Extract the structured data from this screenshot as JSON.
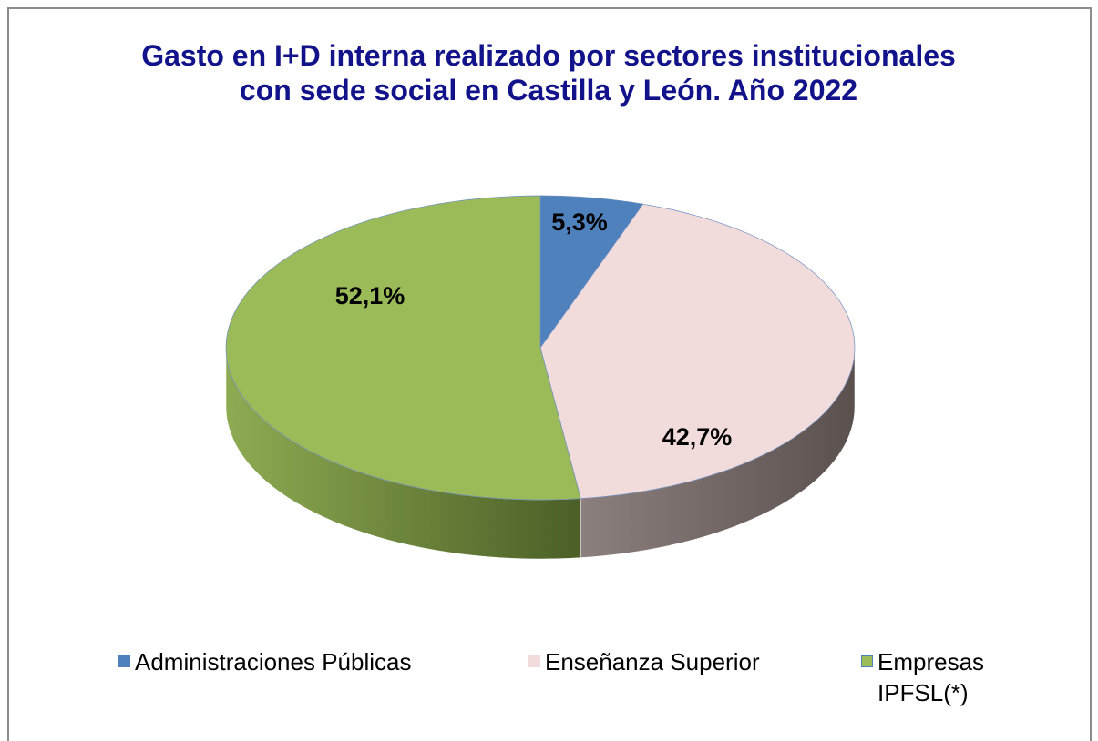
{
  "chart_data": {
    "type": "pie",
    "title": "Gasto en I+D interna realizado por sectores institucionales con sede social en Castilla y León. Año 2022",
    "categories": [
      "Administraciones Públicas",
      "Enseñanza Superior",
      "Empresas IPFSL(*)"
    ],
    "values": [
      5.3,
      42.7,
      52.1
    ],
    "value_labels": [
      "5,3%",
      "42,7%",
      "52,1%"
    ],
    "colors": [
      "#4f81bd",
      "#f2dcdb",
      "#9bbb59"
    ],
    "legend": "bottom"
  }
}
